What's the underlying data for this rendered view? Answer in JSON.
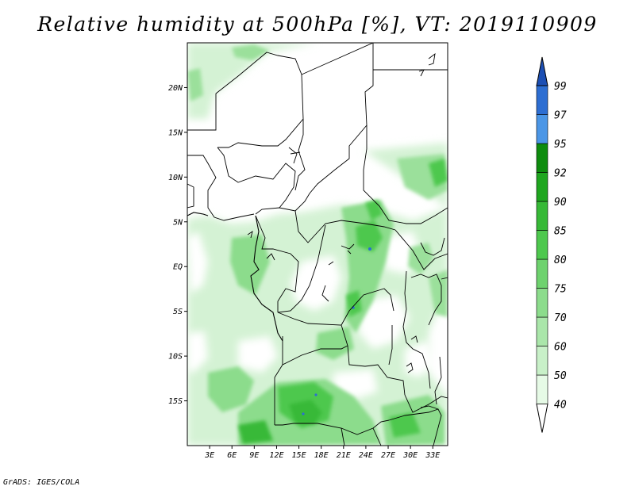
{
  "title": "Relative humidity at 500hPa [%], VT: 2019110909",
  "credit": "GrADS: IGES/COLA",
  "map": {
    "lon_range": [
      0,
      35
    ],
    "lat_range": [
      -20,
      25
    ],
    "lat_ticks": [
      {
        "lat": 20,
        "label": "20N"
      },
      {
        "lat": 15,
        "label": "15N"
      },
      {
        "lat": 10,
        "label": "10N"
      },
      {
        "lat": 5,
        "label": "5N"
      },
      {
        "lat": 0,
        "label": "EQ"
      },
      {
        "lat": -5,
        "label": "5S"
      },
      {
        "lat": -10,
        "label": "10S"
      },
      {
        "lat": -15,
        "label": "15S"
      }
    ],
    "lon_ticks": [
      {
        "lon": 3,
        "label": "3E"
      },
      {
        "lon": 6,
        "label": "6E"
      },
      {
        "lon": 9,
        "label": "9E"
      },
      {
        "lon": 12,
        "label": "12E"
      },
      {
        "lon": 15,
        "label": "15E"
      },
      {
        "lon": 18,
        "label": "18E"
      },
      {
        "lon": 21,
        "label": "21E"
      },
      {
        "lon": 24,
        "label": "24E"
      },
      {
        "lon": 27,
        "label": "27E"
      },
      {
        "lon": 30,
        "label": "30E"
      },
      {
        "lon": 33,
        "label": "33E"
      }
    ]
  },
  "colorbar": {
    "levels": [
      "40",
      "50",
      "60",
      "70",
      "75",
      "80",
      "85",
      "90",
      "92",
      "95",
      "97",
      "99"
    ],
    "colors": [
      "#e6fae6",
      "#c8f0c8",
      "#aae6aa",
      "#8cdc8c",
      "#6ed26e",
      "#4ec84e",
      "#37b937",
      "#1fa61f",
      "#0e8c0e",
      "#4b96e6",
      "#2d6ed2",
      "#1c4fb4"
    ],
    "under_color": "#ffffff"
  }
}
